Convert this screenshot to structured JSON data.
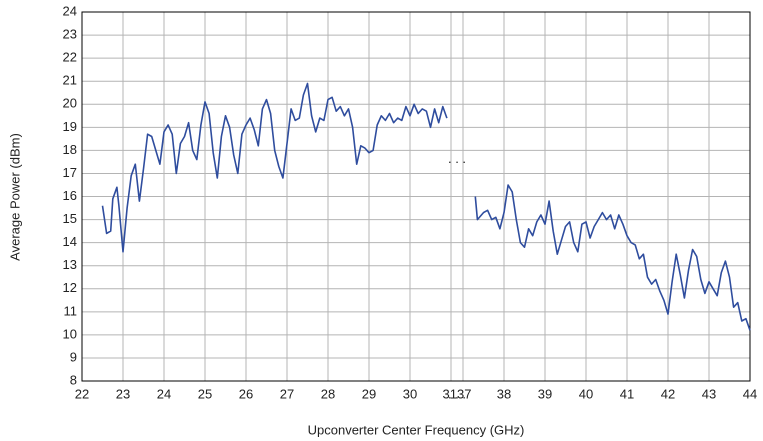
{
  "chart_data": {
    "type": "line",
    "xlabel": "Upconverter Center Frequency (GHz)",
    "ylabel": "Average Power (dBm)",
    "xlim": [
      22,
      44
    ],
    "ylim": [
      8,
      24
    ],
    "xticks": [
      22,
      23,
      24,
      25,
      26,
      27,
      28,
      29,
      30,
      31,
      37,
      38,
      39,
      40,
      41,
      42,
      43,
      44
    ],
    "yticks": [
      8,
      9,
      10,
      11,
      12,
      13,
      14,
      15,
      16,
      17,
      18,
      19,
      20,
      21,
      22,
      23,
      24
    ],
    "axis_break": {
      "from": 31,
      "to": 37,
      "label": ". . ."
    },
    "grid": true,
    "series": [
      {
        "color": "#2f4d9e",
        "x": [
          22.5,
          22.6,
          22.7,
          22.75,
          22.85,
          22.9,
          23.0,
          23.1,
          23.2,
          23.3,
          23.4,
          23.5,
          23.6,
          23.7,
          23.8,
          23.9,
          24.0,
          24.1,
          24.2,
          24.3,
          24.4,
          24.5,
          24.6,
          24.7,
          24.8,
          24.9,
          25.0,
          25.1,
          25.2,
          25.3,
          25.4,
          25.5,
          25.6,
          25.7,
          25.8,
          25.9,
          26.0,
          26.1,
          26.2,
          26.3,
          26.4,
          26.5,
          26.6,
          26.7,
          26.8,
          26.9,
          27.0,
          27.1,
          27.2,
          27.3,
          27.4,
          27.5,
          27.6,
          27.7,
          27.8,
          27.9,
          28.0,
          28.1,
          28.2,
          28.3,
          28.4,
          28.5,
          28.6,
          28.7,
          28.8,
          28.9,
          29.0,
          29.1,
          29.2,
          29.3,
          29.4,
          29.5,
          29.6,
          29.7,
          29.8,
          29.9,
          30.0,
          30.1,
          30.2,
          30.3,
          30.4,
          30.5,
          30.6,
          30.7,
          30.8,
          30.9
        ],
        "values": [
          15.6,
          14.4,
          14.5,
          15.9,
          16.4,
          15.6,
          13.6,
          15.5,
          16.9,
          17.4,
          15.8,
          17.2,
          18.7,
          18.6,
          18.0,
          17.4,
          18.8,
          19.1,
          18.7,
          17.0,
          18.3,
          18.6,
          19.2,
          18.0,
          17.6,
          19.1,
          20.1,
          19.6,
          17.9,
          16.8,
          18.6,
          19.5,
          19.0,
          17.8,
          17.0,
          18.7,
          19.1,
          19.4,
          18.9,
          18.2,
          19.8,
          20.2,
          19.6,
          18.0,
          17.3,
          16.8,
          18.3,
          19.8,
          19.3,
          19.4,
          20.4,
          20.9,
          19.5,
          18.8,
          19.4,
          19.3,
          20.2,
          20.3,
          19.7,
          19.9,
          19.5,
          19.8,
          19.0,
          17.4,
          18.2,
          18.1,
          17.9,
          18.0,
          19.1,
          19.5,
          19.3,
          19.6,
          19.2,
          19.4,
          19.3,
          19.9,
          19.5,
          20.0,
          19.6,
          19.8,
          19.7,
          19.0,
          19.8,
          19.2,
          19.9,
          19.4
        ]
      },
      {
        "color": "#2f4d9e",
        "x": [
          37.3,
          37.35,
          37.5,
          37.6,
          37.7,
          37.8,
          37.9,
          38.0,
          38.1,
          38.2,
          38.3,
          38.4,
          38.5,
          38.6,
          38.7,
          38.8,
          38.9,
          39.0,
          39.1,
          39.2,
          39.3,
          39.4,
          39.5,
          39.6,
          39.7,
          39.8,
          39.9,
          40.0,
          40.1,
          40.2,
          40.3,
          40.4,
          40.5,
          40.6,
          40.7,
          40.8,
          40.9,
          41.0,
          41.1,
          41.2,
          41.3,
          41.4,
          41.5,
          41.6,
          41.7,
          41.8,
          41.9,
          42.0,
          42.1,
          42.2,
          42.3,
          42.4,
          42.5,
          42.6,
          42.7,
          42.8,
          42.9,
          43.0,
          43.1,
          43.2,
          43.3,
          43.4,
          43.5,
          43.6,
          43.7,
          43.8,
          43.9,
          44.0
        ],
        "values": [
          16.0,
          15.0,
          15.3,
          15.4,
          15.0,
          15.1,
          14.6,
          15.3,
          16.5,
          16.2,
          15.0,
          14.0,
          13.8,
          14.6,
          14.3,
          14.9,
          15.2,
          14.8,
          15.8,
          14.5,
          13.5,
          14.1,
          14.7,
          14.9,
          14.0,
          13.6,
          14.8,
          14.9,
          14.2,
          14.7,
          15.0,
          15.3,
          15.0,
          15.2,
          14.6,
          15.2,
          14.8,
          14.3,
          14.0,
          13.9,
          13.3,
          13.5,
          12.5,
          12.2,
          12.4,
          11.9,
          11.5,
          10.9,
          12.3,
          13.5,
          12.6,
          11.6,
          12.8,
          13.7,
          13.4,
          12.4,
          11.8,
          12.3,
          12.0,
          11.7,
          12.7,
          13.2,
          12.5,
          11.2,
          11.4,
          10.6,
          10.7,
          10.2
        ]
      }
    ]
  }
}
